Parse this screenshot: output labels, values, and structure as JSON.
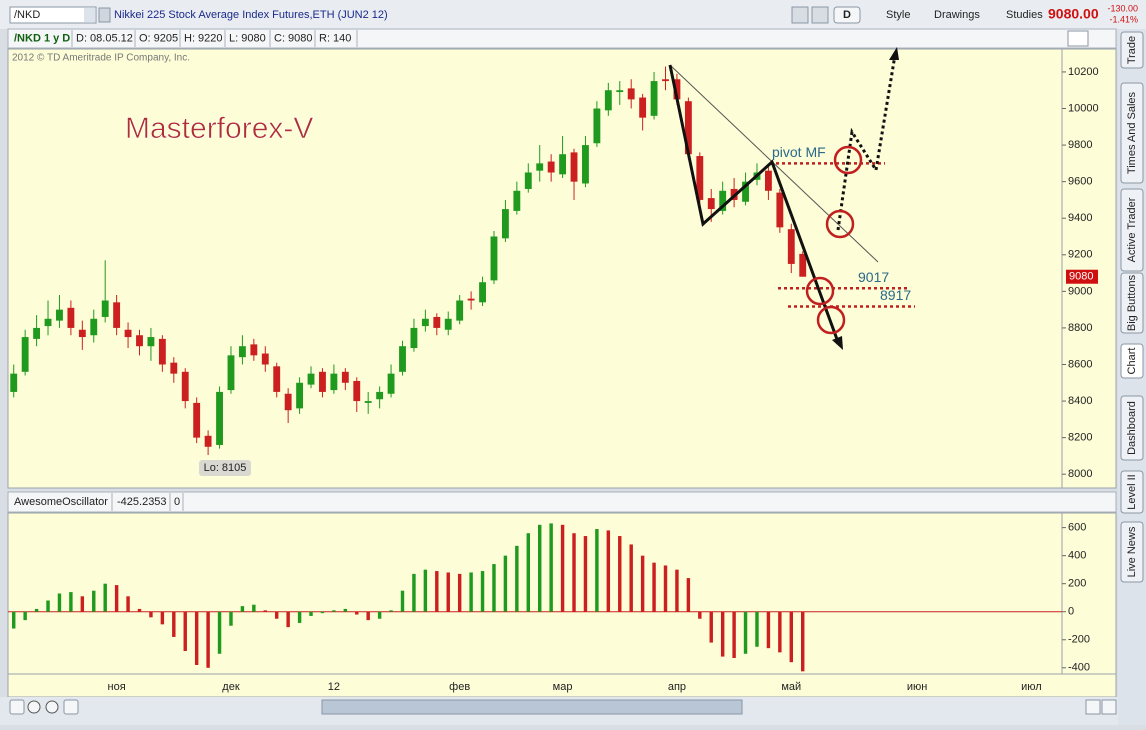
{
  "toolbar": {
    "symbol": "/NKD",
    "instrument": "Nikkei 225 Stock Average Index Futures,ETH (JUN2 12)",
    "buttons": [
      "D",
      "Style",
      "Drawings",
      "Studies"
    ],
    "last": "9080.00",
    "change": "-130.00",
    "change_pct": "-1.41%"
  },
  "info_bar": [
    "/NKD 1 y D",
    "D: 08.05.12",
    "O: 9205",
    "H: 9220",
    "L: 9080",
    "C: 9080",
    "R: 140"
  ],
  "sidebar": [
    "Trade",
    "Times And Sales",
    "Active Trader",
    "Big Buttons",
    "Chart",
    "Dashboard",
    "Level II",
    "Live News"
  ],
  "chart_data": {
    "type": "candlestick",
    "copyright": "2012 © TD Ameritrade IP Company, Inc.",
    "watermark": "Masterforex-V",
    "low_label": "Lo: 8105",
    "up_color": "#1f9a1f",
    "down_color": "#cc2020",
    "ylim": [
      7930,
      10320
    ],
    "yticks": [
      8000,
      8200,
      8400,
      8600,
      8800,
      9000,
      9200,
      9400,
      9600,
      9800,
      10000,
      10200
    ],
    "categories": [
      null,
      null,
      null,
      null,
      null,
      null,
      null,
      null,
      null,
      "ноя",
      null,
      null,
      null,
      null,
      null,
      null,
      null,
      null,
      null,
      "дек",
      null,
      null,
      null,
      null,
      null,
      null,
      null,
      null,
      "12",
      null,
      null,
      null,
      null,
      null,
      null,
      null,
      null,
      null,
      null,
      "фев",
      null,
      null,
      null,
      null,
      null,
      null,
      null,
      null,
      "мар",
      null,
      null,
      null,
      null,
      null,
      null,
      null,
      null,
      null,
      "апр",
      null,
      null,
      null,
      null,
      null,
      null,
      null,
      null,
      null,
      "май",
      null,
      null,
      null,
      null,
      null,
      null,
      null,
      null,
      null,
      null,
      "июн",
      null,
      null,
      null,
      null,
      null,
      null,
      null,
      null,
      null,
      "июл",
      null,
      null
    ],
    "open": [
      8450,
      8560,
      8740,
      8810,
      8840,
      8910,
      8790,
      8760,
      8860,
      8940,
      8790,
      8760,
      8700,
      8740,
      8610,
      8560,
      8390,
      8210,
      8160,
      8460,
      8640,
      8710,
      8660,
      8590,
      8440,
      8360,
      8490,
      8560,
      8460,
      8560,
      8510,
      8390,
      8410,
      8440,
      8560,
      8690,
      8810,
      8860,
      8790,
      8840,
      8960,
      8940,
      9060,
      9290,
      9440,
      9560,
      9660,
      9710,
      9640,
      9760,
      9590,
      9810,
      9990,
      10090,
      10110,
      10060,
      9960,
      10160,
      10160,
      10040,
      9740,
      9510,
      9440,
      9560,
      9490,
      9610,
      9660,
      9540,
      9340,
      9205,
      null,
      null,
      null,
      null,
      null,
      null,
      null,
      null,
      null,
      null,
      null,
      null,
      null,
      null,
      null,
      null,
      null,
      null,
      null,
      null,
      null,
      null
    ],
    "high": [
      8600,
      8790,
      8870,
      8950,
      8980,
      8950,
      8840,
      8900,
      9170,
      8980,
      8830,
      8790,
      8800,
      8760,
      8640,
      8580,
      8420,
      8240,
      8480,
      8700,
      8760,
      8740,
      8700,
      8610,
      8470,
      8530,
      8590,
      8580,
      8600,
      8580,
      8530,
      8450,
      8480,
      8600,
      8730,
      8850,
      8900,
      8880,
      8890,
      8980,
      9000,
      9080,
      9330,
      9500,
      9600,
      9700,
      9800,
      9750,
      9850,
      9780,
      9850,
      10040,
      10140,
      10150,
      10160,
      10080,
      10200,
      10230,
      10190,
      10060,
      9760,
      9560,
      9600,
      9620,
      9650,
      9700,
      9690,
      9560,
      9370,
      9220,
      null,
      null,
      null,
      null,
      null,
      null,
      null,
      null,
      null,
      null,
      null,
      null,
      null,
      null,
      null,
      null,
      null,
      null,
      null,
      null,
      null,
      null
    ],
    "low": [
      8420,
      8540,
      8700,
      8760,
      8800,
      8760,
      8680,
      8720,
      8830,
      8760,
      8690,
      8650,
      8620,
      8560,
      8500,
      8360,
      8170,
      8105,
      8140,
      8440,
      8600,
      8620,
      8560,
      8420,
      8280,
      8330,
      8470,
      8420,
      8440,
      8460,
      8340,
      8330,
      8360,
      8420,
      8540,
      8670,
      8780,
      8760,
      8760,
      8820,
      8900,
      8920,
      9040,
      9270,
      9420,
      9540,
      9600,
      9600,
      9620,
      9500,
      9570,
      9790,
      9960,
      10020,
      10000,
      9880,
      9940,
      10100,
      10020,
      9720,
      9460,
      9380,
      9420,
      9460,
      9470,
      9580,
      9500,
      9320,
      9100,
      9080,
      null,
      null,
      null,
      null,
      null,
      null,
      null,
      null,
      null,
      null,
      null,
      null,
      null,
      null,
      null,
      null,
      null,
      null,
      null,
      null,
      null,
      null
    ],
    "close": [
      8550,
      8750,
      8800,
      8850,
      8900,
      8800,
      8750,
      8850,
      8950,
      8800,
      8750,
      8700,
      8750,
      8600,
      8550,
      8400,
      8200,
      8150,
      8450,
      8650,
      8700,
      8650,
      8600,
      8450,
      8350,
      8500,
      8550,
      8450,
      8550,
      8500,
      8400,
      8400,
      8450,
      8550,
      8700,
      8800,
      8850,
      8800,
      8850,
      8950,
      8950,
      9050,
      9300,
      9450,
      9550,
      9650,
      9700,
      9650,
      9750,
      9600,
      9800,
      10000,
      10100,
      10100,
      10050,
      9950,
      10150,
      10150,
      10050,
      9750,
      9500,
      9450,
      9550,
      9500,
      9600,
      9650,
      9550,
      9350,
      9150,
      9080,
      null,
      null,
      null,
      null,
      null,
      null,
      null,
      null,
      null,
      null,
      null,
      null,
      null,
      null,
      null,
      null,
      null,
      null,
      null,
      null,
      null,
      null
    ],
    "levels": [
      {
        "label": "pivot MF",
        "value": 9700
      },
      {
        "value": 9017
      },
      {
        "value": 8917
      }
    ],
    "oscillator": {
      "name": "AwesomeOscillator",
      "param": "0",
      "ylim": [
        -430,
        690
      ],
      "yticks": [
        -400,
        -200,
        0,
        200,
        400,
        600
      ],
      "zero_color": "#cc2020",
      "values": [
        -120,
        -60,
        20,
        80,
        130,
        140,
        110,
        150,
        200,
        190,
        110,
        20,
        -40,
        -90,
        -180,
        -280,
        -380,
        -400,
        -300,
        -100,
        40,
        50,
        10,
        -50,
        -110,
        -80,
        -30,
        -10,
        10,
        20,
        -20,
        -60,
        -50,
        10,
        150,
        270,
        300,
        290,
        280,
        270,
        280,
        290,
        340,
        400,
        470,
        560,
        620,
        630,
        620,
        560,
        540,
        590,
        580,
        540,
        480,
        400,
        350,
        330,
        300,
        240,
        -50,
        -220,
        -320,
        -330,
        -300,
        -250,
        -260,
        -290,
        -360,
        -425.2353,
        null,
        null,
        null,
        null,
        null,
        null,
        null,
        null,
        null,
        null,
        null,
        null,
        null,
        null,
        null,
        null,
        null,
        null,
        null,
        null,
        null,
        null
      ]
    }
  }
}
